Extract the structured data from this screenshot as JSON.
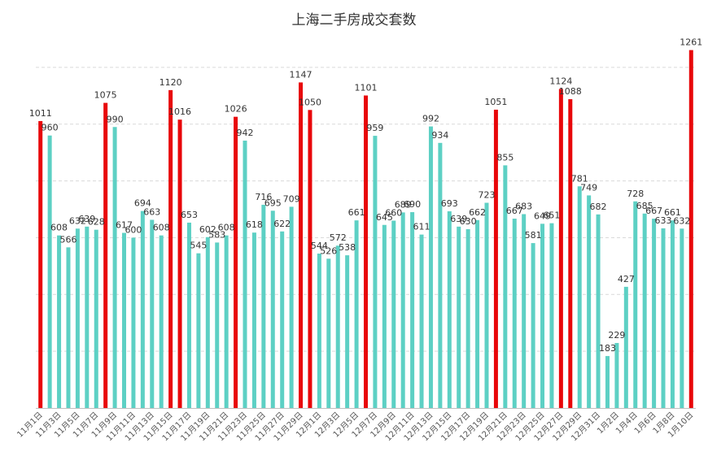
{
  "chart_data": {
    "type": "bar",
    "title": "上海二手房成交套数",
    "xlabel": "",
    "ylabel": "",
    "ylim": [
      0,
      1300
    ],
    "grid": true,
    "legend": "none",
    "colors": {
      "normal": "#5dd0c4",
      "highlight": "#e8070a",
      "gridline": "#d9d9d9",
      "axis": "#bfbfbf"
    },
    "categories": [
      "11月1日",
      "11月2日",
      "11月3日",
      "11月4日",
      "11月5日",
      "11月6日",
      "11月7日",
      "11月8日",
      "11月9日",
      "11月10日",
      "11月11日",
      "11月12日",
      "11月13日",
      "11月14日",
      "11月15日",
      "11月16日",
      "11月17日",
      "11月18日",
      "11月19日",
      "11月20日",
      "11月21日",
      "11月22日",
      "11月23日",
      "11月24日",
      "11月25日",
      "11月26日",
      "11月27日",
      "11月28日",
      "11月29日",
      "11月30日",
      "12月1日",
      "12月2日",
      "12月3日",
      "12月4日",
      "12月5日",
      "12月6日",
      "12月7日",
      "12月8日",
      "12月9日",
      "12月10日",
      "12月11日",
      "12月12日",
      "12月13日",
      "12月14日",
      "12月15日",
      "12月16日",
      "12月17日",
      "12月18日",
      "12月19日",
      "12月20日",
      "12月21日",
      "12月22日",
      "12月23日",
      "12月24日",
      "12月25日",
      "12月26日",
      "12月27日",
      "12月28日",
      "12月29日",
      "12月30日",
      "12月31日",
      "1月1日",
      "1月2日",
      "1月3日",
      "1月4日",
      "1月5日",
      "1月6日",
      "1月7日",
      "1月8日",
      "1月9日",
      "1月10日"
    ],
    "tick_labels": [
      "11月1日",
      "11月3日",
      "11月5日",
      "11月7日",
      "11月9日",
      "11月11日",
      "11月13日",
      "11月15日",
      "11月17日",
      "11月19日",
      "11月21日",
      "11月23日",
      "11月25日",
      "11月27日",
      "11月29日",
      "12月1日",
      "12月3日",
      "12月5日",
      "12月7日",
      "12月9日",
      "12月11日",
      "12月13日",
      "12月15日",
      "12月17日",
      "12月19日",
      "12月21日",
      "12月23日",
      "12月25日",
      "12月27日",
      "12月29日",
      "12月31日",
      "1月2日",
      "1月4日",
      "1月6日",
      "1月8日",
      "1月10日"
    ],
    "tick_label_indices": [
      0,
      2,
      4,
      6,
      8,
      10,
      12,
      14,
      16,
      18,
      20,
      22,
      24,
      26,
      28,
      30,
      32,
      34,
      36,
      38,
      40,
      42,
      44,
      46,
      48,
      50,
      52,
      54,
      56,
      58,
      60,
      62,
      64,
      66,
      68,
      70
    ],
    "values": [
      1011,
      960,
      608,
      566,
      632,
      639,
      628,
      1075,
      990,
      617,
      600,
      694,
      663,
      608,
      1120,
      1016,
      653,
      545,
      602,
      583,
      608,
      1026,
      942,
      618,
      716,
      695,
      622,
      709,
      1147,
      1050,
      544,
      526,
      572,
      538,
      661,
      1101,
      959,
      645,
      660,
      689,
      690,
      611,
      992,
      934,
      693,
      639,
      630,
      662,
      723,
      1051,
      855,
      667,
      683,
      581,
      649,
      651,
      1124,
      1088,
      781,
      749,
      682,
      183,
      229,
      427,
      728,
      685,
      667,
      633,
      661,
      632,
      1261
    ],
    "highlight_indices": [
      0,
      7,
      14,
      15,
      21,
      28,
      29,
      35,
      49,
      56,
      57,
      70
    ]
  }
}
